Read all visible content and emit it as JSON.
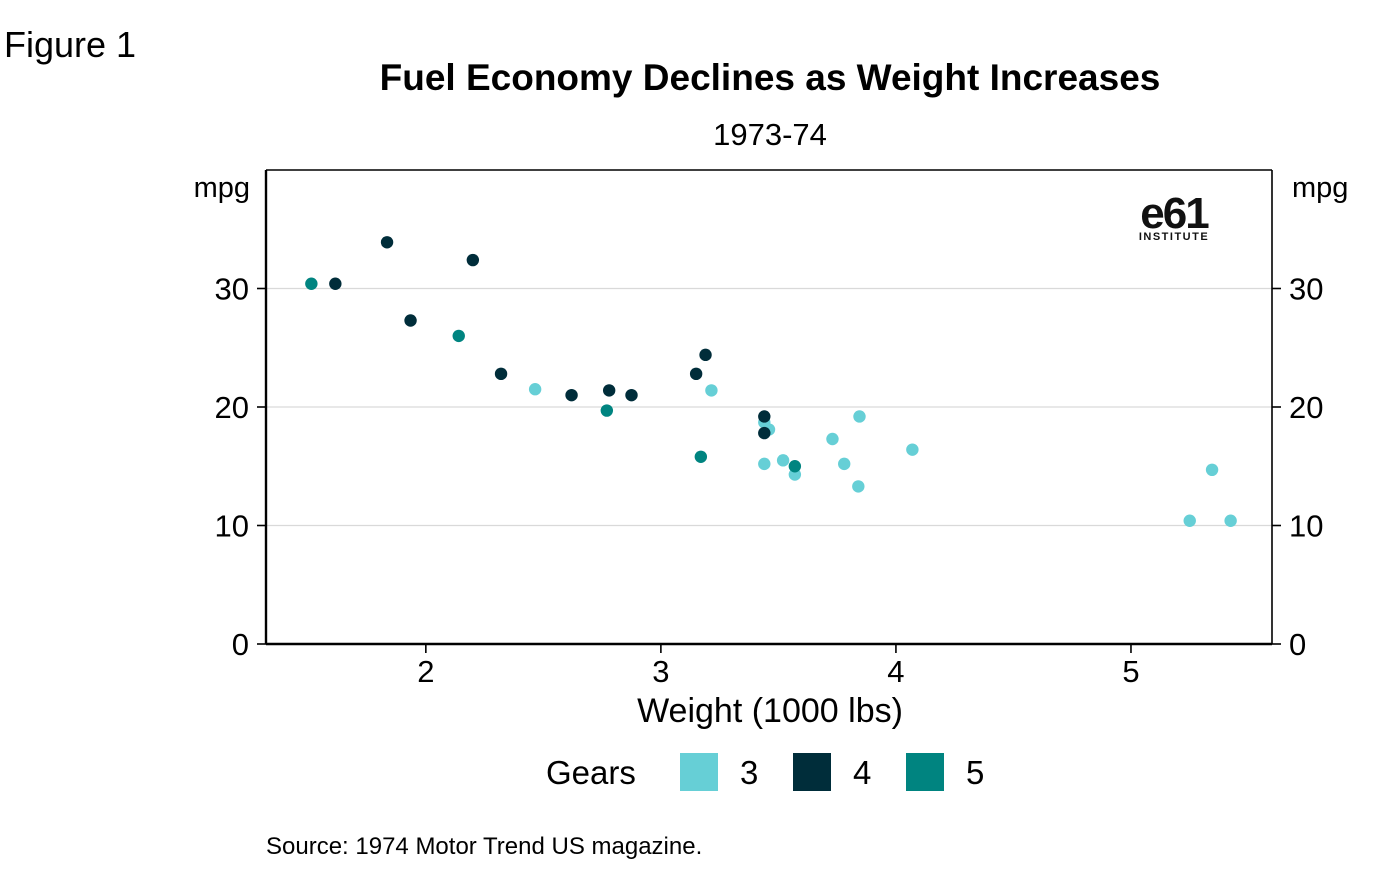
{
  "figure_label": "Figure 1",
  "source": "Source: 1974 Motor Trend US magazine.",
  "logo": {
    "mark": "e61",
    "text": "INSTITUTE"
  },
  "colors": {
    "gear_3": "#66CFD6",
    "gear_4": "#002D3A",
    "gear_5": "#008480",
    "gridline": "#d9d9d9",
    "axis": "#000000"
  },
  "chart_data": {
    "type": "scatter",
    "title": "Fuel Economy Declines as Weight Increases",
    "subtitle": "1973-74",
    "xlabel": "Weight (1000 lbs)",
    "ylabel_left": "mpg",
    "ylabel_right": "mpg",
    "xlim": [
      1.32,
      5.6
    ],
    "ylim": [
      0,
      40
    ],
    "x_ticks": [
      2,
      3,
      4,
      5
    ],
    "y_ticks": [
      0,
      10,
      20,
      30
    ],
    "grid": "horizontal",
    "legend": {
      "title": "Gears",
      "placement": "bottom",
      "entries": [
        "3",
        "4",
        "5"
      ]
    },
    "series": [
      {
        "name": "3",
        "points": [
          [
            2.465,
            21.5
          ],
          [
            3.215,
            21.4
          ],
          [
            3.44,
            18.7
          ],
          [
            3.46,
            18.1
          ],
          [
            3.57,
            14.3
          ],
          [
            3.44,
            15.2
          ],
          [
            3.52,
            15.5
          ],
          [
            3.73,
            17.3
          ],
          [
            3.78,
            15.2
          ],
          [
            3.84,
            13.3
          ],
          [
            3.845,
            19.2
          ],
          [
            4.07,
            16.4
          ],
          [
            5.25,
            10.4
          ],
          [
            5.345,
            14.7
          ],
          [
            5.424,
            10.4
          ]
        ]
      },
      {
        "name": "4",
        "points": [
          [
            1.615,
            30.4
          ],
          [
            1.835,
            33.9
          ],
          [
            1.935,
            27.3
          ],
          [
            2.2,
            32.4
          ],
          [
            2.32,
            22.8
          ],
          [
            2.62,
            21.0
          ],
          [
            2.78,
            21.4
          ],
          [
            2.875,
            21.0
          ],
          [
            3.15,
            22.8
          ],
          [
            3.19,
            24.4
          ],
          [
            3.44,
            19.2
          ],
          [
            3.44,
            17.8
          ]
        ]
      },
      {
        "name": "5",
        "points": [
          [
            1.513,
            30.4
          ],
          [
            2.14,
            26.0
          ],
          [
            2.77,
            19.7
          ],
          [
            3.17,
            15.8
          ],
          [
            3.57,
            15.0
          ]
        ]
      }
    ]
  }
}
